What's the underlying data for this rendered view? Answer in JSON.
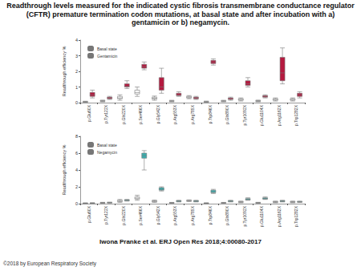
{
  "title": "Readthrough levels measured for the indicated cystic fibrosis transmembrane conductance regulator (CFTR) premature termination codon mutations, at basal state and after incubation with a) gentamicin or b) negamycin.",
  "citation": "Iwona Pranke et al. ERJ Open Res 2018;4:00080-2017",
  "copyright": "©2018 by European Respiratory Society",
  "chart_data": [
    {
      "type": "boxplot",
      "y_label": "Readthrough efficiency %",
      "categories": [
        "p.Glu60X",
        "p.Tyr122X",
        "p.Gln220X",
        "p.Ser466X",
        "p.Gly542X",
        "p.Arg553X",
        "p.Arg785X",
        "p.Trp846X",
        "p.Gln890X",
        "p.Tyr1092X",
        "p.Glu1104X",
        "p.Arg1162X",
        "p.Trp1282X"
      ],
      "series": [
        {
          "name": "Basal state",
          "color": "#ffffff",
          "values": [
            [
              0.02,
              0.04,
              0.05,
              0.07,
              0.09
            ],
            [
              0.05,
              0.08,
              0.1,
              0.13,
              0.16
            ],
            [
              0.15,
              0.25,
              0.3,
              0.4,
              0.5
            ],
            [
              0.4,
              0.55,
              0.65,
              0.8,
              1.0
            ],
            [
              0.15,
              0.22,
              0.28,
              0.35,
              0.42
            ],
            [
              0.05,
              0.08,
              0.1,
              0.12,
              0.15
            ],
            [
              0.25,
              0.3,
              0.35,
              0.4,
              0.45
            ],
            [
              0.02,
              0.04,
              0.05,
              0.07,
              0.1
            ],
            [
              0.05,
              0.08,
              0.1,
              0.12,
              0.15
            ],
            [
              0.1,
              0.15,
              0.2,
              0.25,
              0.3
            ],
            [
              0.05,
              0.08,
              0.1,
              0.13,
              0.16
            ],
            [
              0.1,
              0.15,
              0.2,
              0.25,
              0.3
            ],
            [
              0.1,
              0.15,
              0.2,
              0.25,
              0.3
            ]
          ]
        },
        {
          "name": "Gentamicin",
          "color": "#b5193f",
          "values": [
            [
              0.3,
              0.4,
              0.5,
              0.65,
              0.8
            ],
            [
              0.2,
              0.25,
              0.3,
              0.35,
              0.4
            ],
            [
              0.9,
              1.0,
              1.05,
              1.2,
              1.4
            ],
            [
              2.1,
              2.2,
              2.3,
              2.45,
              2.6
            ],
            [
              0.6,
              0.8,
              1.0,
              1.6,
              2.2
            ],
            [
              0.4,
              0.45,
              0.5,
              0.6,
              0.7
            ],
            [
              0.2,
              0.25,
              0.3,
              0.35,
              0.4
            ],
            [
              2.4,
              2.5,
              2.6,
              2.7,
              2.8
            ],
            [
              0.15,
              0.2,
              0.25,
              0.3,
              0.35
            ],
            [
              1.0,
              1.1,
              1.2,
              1.4,
              1.6
            ],
            [
              0.3,
              0.35,
              0.4,
              0.45,
              0.5
            ],
            [
              1.2,
              1.4,
              1.9,
              2.9,
              3.5
            ],
            [
              0.3,
              0.4,
              0.5,
              0.6,
              0.7
            ]
          ]
        }
      ],
      "ylim": [
        0,
        4
      ],
      "yticks": [
        0,
        1,
        2,
        3,
        4
      ],
      "grid": false,
      "legend": "top-left"
    },
    {
      "type": "boxplot",
      "y_label": "Readthrough efficiency %",
      "categories": [
        "p.Glu60X",
        "p.Tyr122X",
        "p.Gln220X",
        "p.Ser466X",
        "p.Gly542X",
        "p.Arg553X",
        "p.Arg785X",
        "p.Trp846X",
        "p.Gln890X",
        "p.Tyr1092X",
        "p.Glu1104X",
        "p.Arg1162X",
        "p.Trp1282X"
      ],
      "series": [
        {
          "name": "Basal state",
          "color": "#ffffff",
          "values": [
            [
              0.02,
              0.04,
              0.05,
              0.07,
              0.09
            ],
            [
              0.05,
              0.08,
              0.1,
              0.13,
              0.16
            ],
            [
              0.15,
              0.25,
              0.3,
              0.4,
              0.5
            ],
            [
              0.4,
              0.55,
              0.65,
              0.8,
              1.0
            ],
            [
              0.15,
              0.22,
              0.28,
              0.35,
              0.42
            ],
            [
              0.05,
              0.08,
              0.1,
              0.12,
              0.15
            ],
            [
              0.25,
              0.3,
              0.35,
              0.4,
              0.45
            ],
            [
              0.02,
              0.04,
              0.05,
              0.07,
              0.1
            ],
            [
              0.05,
              0.08,
              0.1,
              0.12,
              0.15
            ],
            [
              0.1,
              0.15,
              0.2,
              0.25,
              0.3
            ],
            [
              0.05,
              0.08,
              0.1,
              0.13,
              0.16
            ],
            [
              0.1,
              0.15,
              0.2,
              0.25,
              0.3
            ],
            [
              0.1,
              0.15,
              0.2,
              0.25,
              0.3
            ]
          ]
        },
        {
          "name": "Negamycin",
          "color": "#3aafb0",
          "values": [
            [
              0.03,
              0.05,
              0.06,
              0.08,
              0.1
            ],
            [
              0.08,
              0.1,
              0.12,
              0.15,
              0.18
            ],
            [
              0.3,
              0.35,
              0.4,
              0.45,
              0.5
            ],
            [
              4.0,
              5.4,
              5.7,
              6.0,
              6.3
            ],
            [
              1.5,
              1.6,
              1.7,
              1.9,
              2.0
            ],
            [
              0.2,
              0.25,
              0.3,
              0.35,
              0.4
            ],
            [
              0.2,
              0.25,
              0.3,
              0.35,
              0.4
            ],
            [
              1.2,
              1.3,
              1.4,
              1.6,
              1.7
            ],
            [
              0.2,
              0.25,
              0.3,
              0.35,
              0.4
            ],
            [
              0.4,
              0.45,
              0.5,
              0.6,
              0.7
            ],
            [
              0.5,
              0.55,
              0.6,
              0.7,
              0.8
            ],
            [
              0.2,
              0.25,
              0.3,
              0.35,
              0.4
            ],
            [
              0.15,
              0.18,
              0.2,
              0.25,
              0.3
            ]
          ]
        }
      ],
      "ylim": [
        0,
        8
      ],
      "yticks": [
        0,
        2,
        4,
        6,
        8
      ],
      "grid": false,
      "legend": "top-left"
    }
  ]
}
